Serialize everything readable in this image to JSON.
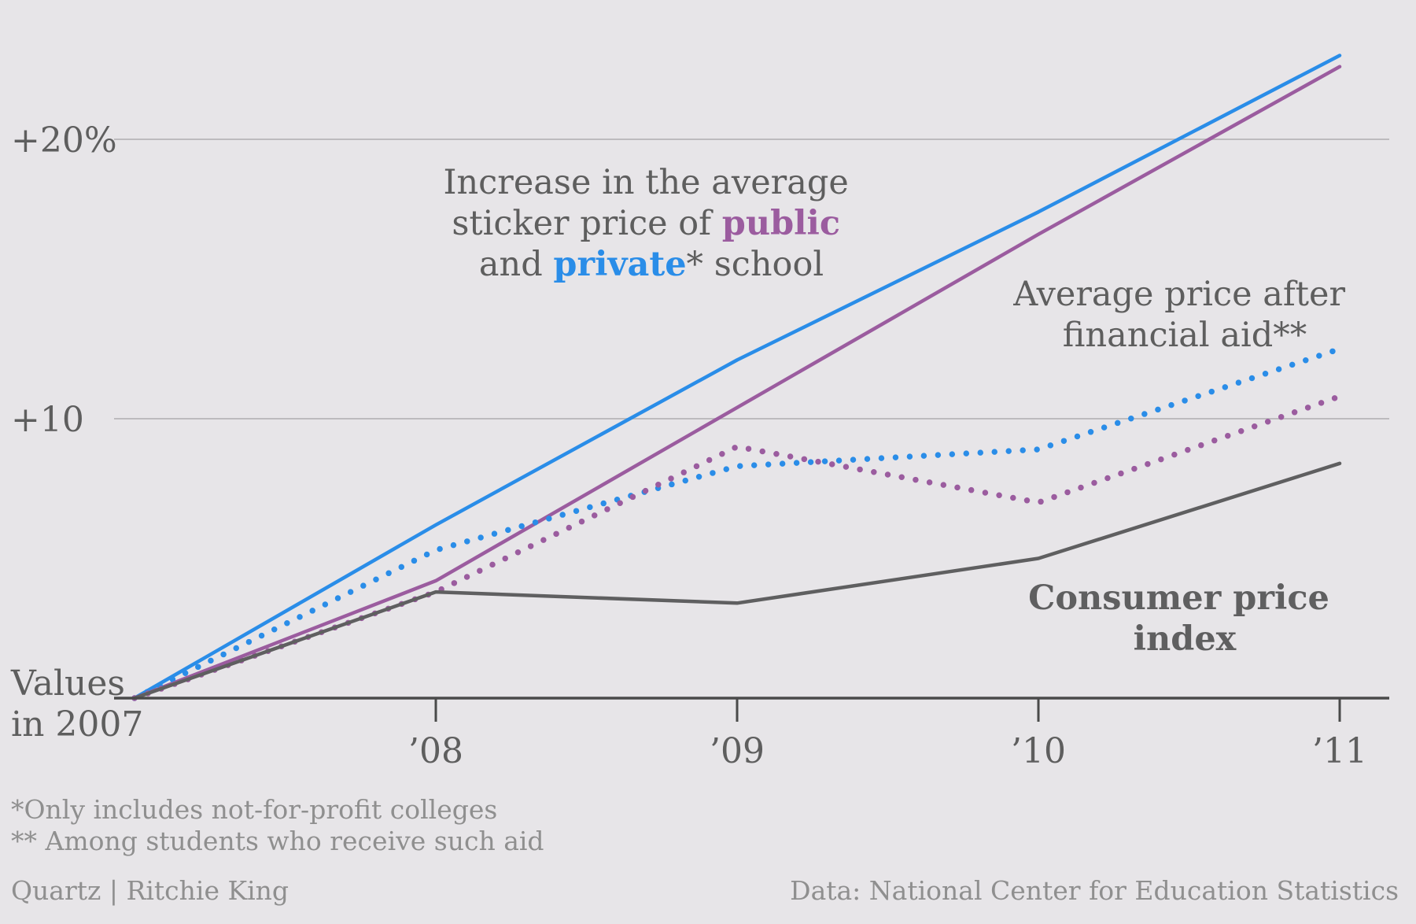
{
  "chart_data": {
    "type": "line",
    "x": [
      2007,
      2008,
      2009,
      2010,
      2011
    ],
    "x_tick_labels": [
      "’08",
      "’09",
      "’10",
      "’11"
    ],
    "origin_label": [
      "Values",
      "in 2007"
    ],
    "y_tick_labels": [
      "+10",
      "+20%"
    ],
    "y_tick_values": [
      10,
      20
    ],
    "ylim": [
      0,
      23
    ],
    "grid": true,
    "series": [
      {
        "key": "private_sticker",
        "values": [
          0,
          6.2,
          12.1,
          17.4,
          23.0
        ],
        "color": "#2a8de8",
        "style": "solid"
      },
      {
        "key": "public_sticker",
        "values": [
          0,
          4.2,
          10.4,
          16.6,
          22.6
        ],
        "color": "#9b5c9f",
        "style": "solid"
      },
      {
        "key": "private_net",
        "values": [
          0,
          5.3,
          8.3,
          8.9,
          12.5
        ],
        "color": "#2a8de8",
        "style": "dotted"
      },
      {
        "key": "public_net",
        "values": [
          0,
          3.8,
          9.0,
          7.0,
          10.8
        ],
        "color": "#9b5c9f",
        "style": "dotted"
      },
      {
        "key": "cpi",
        "values": [
          0,
          3.8,
          3.4,
          5.0,
          8.4
        ],
        "color": "#5f5f60",
        "style": "solid"
      }
    ],
    "annotations": {
      "sticker": {
        "line1": "Increase in the average",
        "line2_pre": "sticker price of ",
        "line2_public": "public",
        "line3_pre": "and ",
        "line3_private": "private",
        "line3_post": "* school"
      },
      "aid": {
        "line1": "Average price after",
        "line2": "financial aid**"
      },
      "cpi": {
        "line1": "Consumer price",
        "line2": "index"
      }
    },
    "footnotes": [
      "*Only includes not-for-profit colleges",
      "** Among students who receive such aid"
    ],
    "credit": "Quartz | Ritchie King",
    "source": "Data: National Center for Education Statistics"
  },
  "colors": {
    "background": "#e7e5e8",
    "private": "#2a8de8",
    "public": "#9b5c9f",
    "cpi": "#5f5f60",
    "text": "#5e5e5e",
    "footnote": "#8f8f8f",
    "grid": "#bdbbbe",
    "axis": "#4a4a4a"
  }
}
